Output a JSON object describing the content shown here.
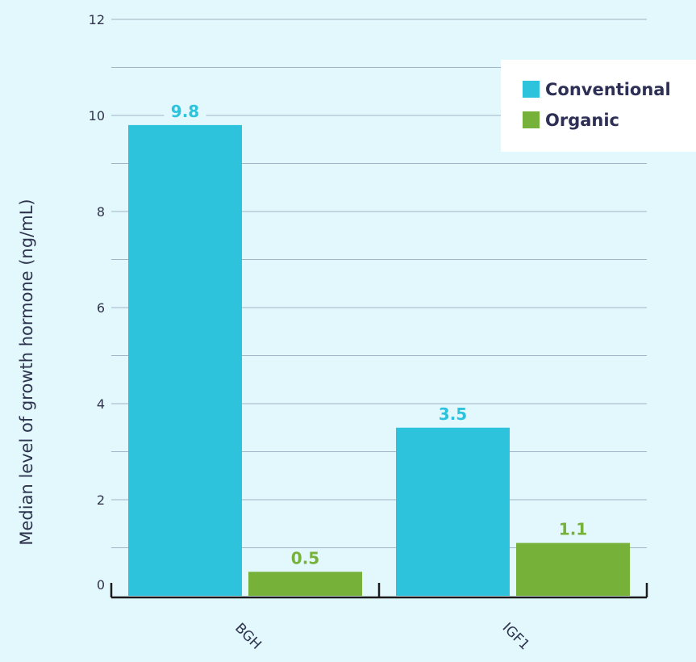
{
  "chart_data": {
    "type": "bar",
    "categories": [
      "BGH",
      "IGF1"
    ],
    "series": [
      {
        "name": "Conventional",
        "values": [
          9.8,
          3.5
        ],
        "color": "#2ec3dd"
      },
      {
        "name": "Organic",
        "values": [
          0.5,
          1.1
        ],
        "color": "#76b23a"
      }
    ],
    "value_labels": [
      [
        "9.8",
        "3.5"
      ],
      [
        "0.5",
        "1.1"
      ]
    ],
    "ylabel": "Median level of growth hormone (ng/mL)",
    "xlabel": "",
    "ylim": [
      0,
      12
    ],
    "yticks": [
      0,
      2,
      4,
      6,
      8,
      10,
      12
    ],
    "grid": true,
    "legend_position": "top-right",
    "colors": {
      "background": "#e2f8fc",
      "grid": "#9fb4c6",
      "axis": "#1b1b1b",
      "legend_bg": "#ffffff"
    }
  }
}
